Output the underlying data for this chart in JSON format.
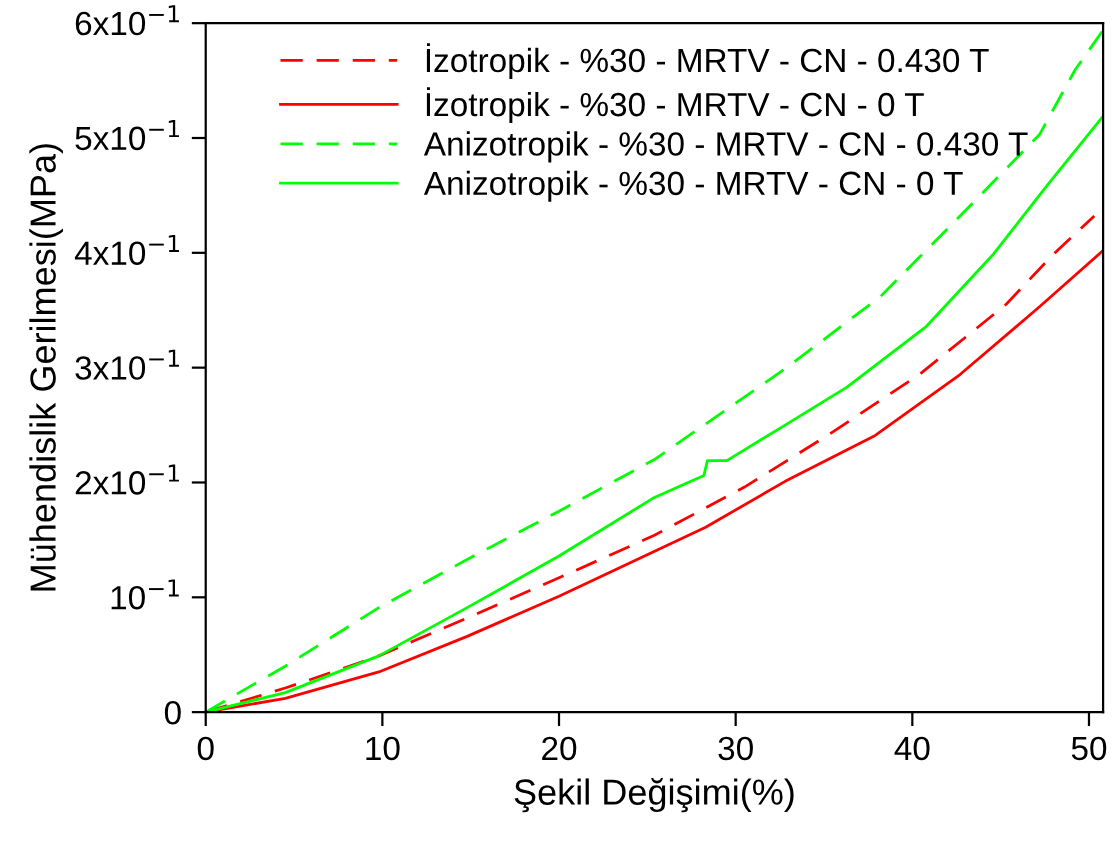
{
  "chart_data": {
    "type": "line",
    "xlabel": "Şekil Değişimi(%)",
    "ylabel": "Mühendislik Gerilmesi(MPa)",
    "xlim": [
      0,
      50.8
    ],
    "ylim": [
      0,
      0.6
    ],
    "xticks": [
      0,
      10,
      20,
      30,
      40,
      50
    ],
    "yticks": [
      0,
      {
        "value": 0.1,
        "label": "10$^{−1}$"
      },
      {
        "value": 0.2,
        "label": "2x10$^{−1}$"
      },
      {
        "value": 0.3,
        "label": "3x10$^{−1}$"
      },
      {
        "value": 0.4,
        "label": "4x10$^{−1}$"
      },
      {
        "value": 0.5,
        "label": "5x10$^{−1}$"
      },
      {
        "value": 0.6,
        "label": "6x10$^{−1}$"
      }
    ],
    "grid": false,
    "legend": "top",
    "marker": "none",
    "series": [
      {
        "name": "İzotropik - %30 - MRTV - CN - 0.430 T",
        "color": "#ff0000",
        "line_style": "dashed",
        "x": [
          0,
          4.5,
          7.2,
          9.8,
          14.8,
          20.0,
          25.4,
          30.5,
          35.1,
          40.4,
          45.3,
          48.0,
          50.3
        ],
        "values": [
          0,
          0.021,
          0.035,
          0.049,
          0.082,
          0.117,
          0.154,
          0.196,
          0.24,
          0.294,
          0.355,
          0.399,
          0.432
        ]
      },
      {
        "name": "İzotropik - %30 - MRTV - CN - 0 T",
        "color": "#ff0000",
        "line_style": "solid",
        "x": [
          0,
          4.5,
          9.8,
          14.8,
          20.0,
          28.3,
          32.8,
          37.9,
          42.7,
          47.2,
          50.8
        ],
        "values": [
          0,
          0.012,
          0.035,
          0.066,
          0.101,
          0.161,
          0.201,
          0.241,
          0.294,
          0.353,
          0.402
        ]
      },
      {
        "name": "Anizotropik - %30 - MRTV - CN - 0.430 T",
        "color": "#00ff00",
        "line_style": "dashed",
        "x": [
          0,
          1.9,
          4.5,
          9.8,
          14.8,
          20.0,
          25.4,
          32.8,
          38.2,
          42.7,
          47.2,
          49.2,
          50.8
        ],
        "values": [
          0,
          0.017,
          0.04,
          0.091,
          0.133,
          0.175,
          0.22,
          0.299,
          0.362,
          0.432,
          0.503,
          0.559,
          0.594
        ]
      },
      {
        "name": "Anizotropik - %30 - MRTV - CN - 0 T",
        "color": "#00ff00",
        "line_style": "solid",
        "x": [
          0,
          4.5,
          9.8,
          14.8,
          20.0,
          25.4,
          28.2,
          28.4,
          29.5,
          32.8,
          36.3,
          40.8,
          44.6,
          47.6,
          50.8
        ],
        "values": [
          0,
          0.017,
          0.049,
          0.091,
          0.136,
          0.187,
          0.206,
          0.219,
          0.219,
          0.25,
          0.283,
          0.336,
          0.399,
          0.458,
          0.519
        ]
      }
    ]
  }
}
